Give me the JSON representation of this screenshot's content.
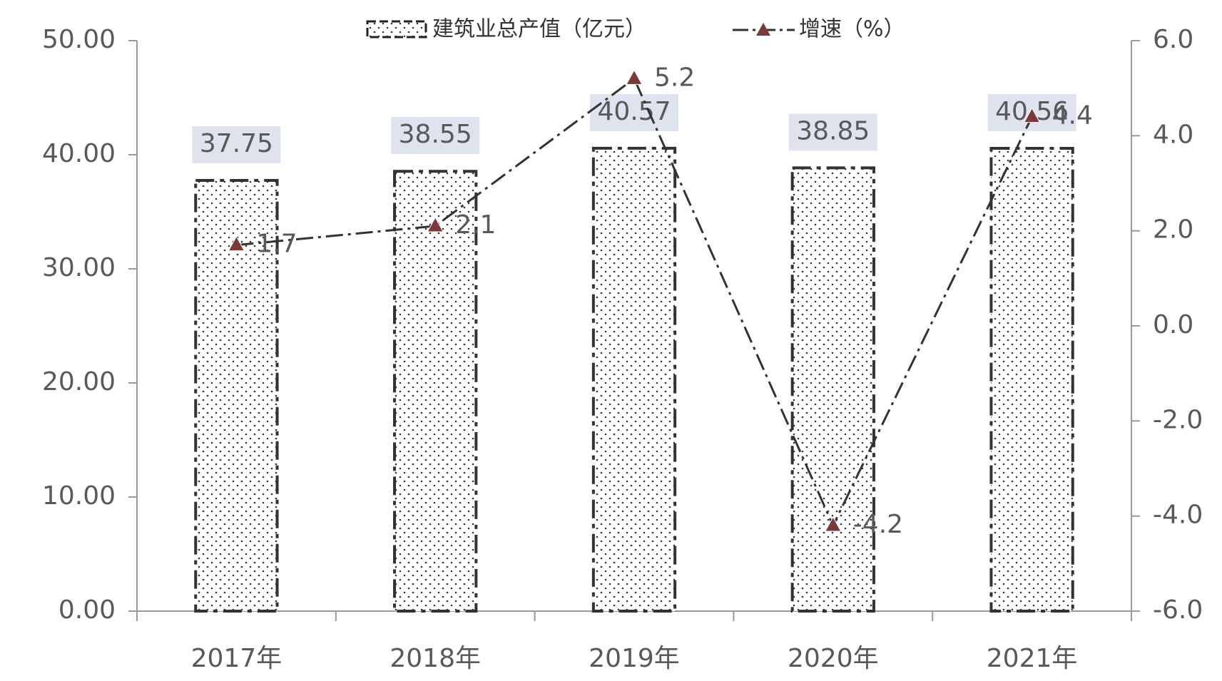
{
  "chart_data": {
    "type": "bar",
    "categories": [
      "2017年",
      "2018年",
      "2019年",
      "2020年",
      "2021年"
    ],
    "series": [
      {
        "name": "建筑业总产值（亿元）",
        "type": "bar",
        "color": "#333333",
        "values": [
          37.75,
          38.55,
          40.57,
          38.85,
          40.56
        ]
      },
      {
        "name": "增速（%）",
        "type": "line",
        "axis": "y2",
        "color": "#7a3a3a",
        "values": [
          1.7,
          2.1,
          5.2,
          -4.2,
          4.4
        ]
      }
    ],
    "ylim": [
      0,
      50
    ],
    "yticks": [
      {
        "value": 0,
        "label": "0.00"
      },
      {
        "value": 10,
        "label": "10.00"
      },
      {
        "value": 20,
        "label": "20.00"
      },
      {
        "value": 30,
        "label": "30.00"
      },
      {
        "value": 40,
        "label": "40.00"
      },
      {
        "value": 50,
        "label": "50.00"
      }
    ],
    "y2lim": [
      -6,
      6
    ],
    "y2ticks": [
      {
        "value": -6,
        "label": "-6.0"
      },
      {
        "value": -4,
        "label": "-4.0"
      },
      {
        "value": -2,
        "label": "-2.0"
      },
      {
        "value": 0,
        "label": "0.0"
      },
      {
        "value": 2,
        "label": "2.0"
      },
      {
        "value": 4,
        "label": "4.0"
      },
      {
        "value": 6,
        "label": "6.0"
      }
    ]
  }
}
